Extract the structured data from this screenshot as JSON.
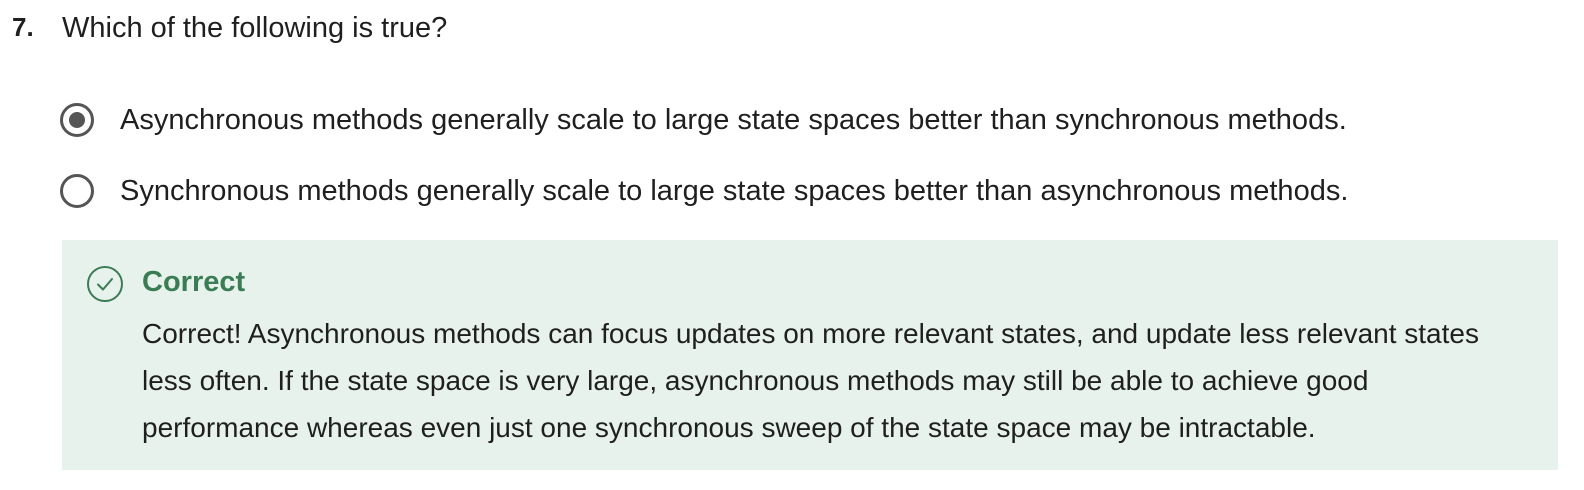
{
  "question": {
    "number": "7.",
    "text": "Which of the following is true?"
  },
  "options": [
    {
      "label": "Asynchronous methods generally scale to large state spaces better than synchronous methods.",
      "selected": true
    },
    {
      "label": "Synchronous methods generally scale to large state spaces better than asynchronous methods.",
      "selected": false
    }
  ],
  "feedback": {
    "status_icon": "check-circle-icon",
    "title": "Correct",
    "body": "Correct! Asynchronous methods can focus updates on more relevant states, and update less relevant states less often. If the state space is very large, asynchronous methods may still be able to achieve good performance whereas even just one synchronous sweep of the state space may be intractable.",
    "accent_color": "#3a7d55",
    "background_color": "#e8f2ec"
  }
}
